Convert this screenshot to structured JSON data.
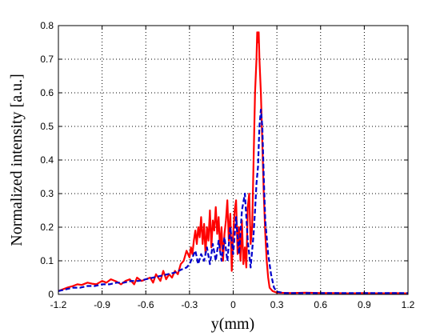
{
  "chart_data": {
    "type": "line",
    "title": "",
    "xlabel": "y(mm)",
    "ylabel": "Normalized intensity [a.u.]",
    "xlim": [
      -1.2,
      1.2
    ],
    "ylim": [
      0,
      0.8
    ],
    "xticks": [
      -1.2,
      -0.9,
      -0.6,
      -0.3,
      0,
      0.3,
      0.6,
      0.9,
      1.2
    ],
    "xtick_labels": [
      "-1.2",
      "-0.9",
      "-0.6",
      "-0.3",
      "0",
      "0.3",
      "0.6",
      "0.9",
      "1.2"
    ],
    "yticks": [
      0,
      0.1,
      0.2,
      0.3,
      0.4,
      0.5,
      0.6,
      0.7,
      0.8
    ],
    "ytick_labels": [
      "0",
      "0.1",
      "0.2",
      "0.3",
      "0.4",
      "0.5",
      "0.6",
      "0.7",
      "0.8"
    ],
    "grid": true,
    "legend": "none",
    "series": [
      {
        "color": "#ff0000",
        "style": "solid",
        "points": [
          [
            -1.2,
            0.01
          ],
          [
            -1.17,
            0.015
          ],
          [
            -1.14,
            0.02
          ],
          [
            -1.1,
            0.025
          ],
          [
            -1.07,
            0.03
          ],
          [
            -1.04,
            0.028
          ],
          [
            -1.0,
            0.035
          ],
          [
            -0.97,
            0.032
          ],
          [
            -0.94,
            0.03
          ],
          [
            -0.9,
            0.04
          ],
          [
            -0.87,
            0.035
          ],
          [
            -0.84,
            0.045
          ],
          [
            -0.8,
            0.038
          ],
          [
            -0.77,
            0.03
          ],
          [
            -0.74,
            0.04
          ],
          [
            -0.71,
            0.045
          ],
          [
            -0.68,
            0.03
          ],
          [
            -0.66,
            0.05
          ],
          [
            -0.63,
            0.04
          ],
          [
            -0.6,
            0.045
          ],
          [
            -0.57,
            0.05
          ],
          [
            -0.55,
            0.035
          ],
          [
            -0.53,
            0.06
          ],
          [
            -0.5,
            0.04
          ],
          [
            -0.48,
            0.07
          ],
          [
            -0.46,
            0.045
          ],
          [
            -0.44,
            0.06
          ],
          [
            -0.42,
            0.05
          ],
          [
            -0.4,
            0.07
          ],
          [
            -0.38,
            0.06
          ],
          [
            -0.36,
            0.09
          ],
          [
            -0.34,
            0.1
          ],
          [
            -0.32,
            0.13
          ],
          [
            -0.3,
            0.11
          ],
          [
            -0.29,
            0.14
          ],
          [
            -0.28,
            0.12
          ],
          [
            -0.27,
            0.16
          ],
          [
            -0.26,
            0.19
          ],
          [
            -0.25,
            0.15
          ],
          [
            -0.24,
            0.2
          ],
          [
            -0.23,
            0.17
          ],
          [
            -0.22,
            0.23
          ],
          [
            -0.21,
            0.15
          ],
          [
            -0.2,
            0.21
          ],
          [
            -0.19,
            0.12
          ],
          [
            -0.18,
            0.2
          ],
          [
            -0.17,
            0.16
          ],
          [
            -0.16,
            0.25
          ],
          [
            -0.15,
            0.14
          ],
          [
            -0.14,
            0.22
          ],
          [
            -0.13,
            0.19
          ],
          [
            -0.12,
            0.26
          ],
          [
            -0.11,
            0.18
          ],
          [
            -0.1,
            0.23
          ],
          [
            -0.09,
            0.13
          ],
          [
            -0.08,
            0.2
          ],
          [
            -0.07,
            0.1
          ],
          [
            -0.06,
            0.18
          ],
          [
            -0.05,
            0.22
          ],
          [
            -0.04,
            0.28
          ],
          [
            -0.03,
            0.16
          ],
          [
            -0.02,
            0.24
          ],
          [
            -0.01,
            0.07
          ],
          [
            0.0,
            0.18
          ],
          [
            0.01,
            0.25
          ],
          [
            0.02,
            0.28
          ],
          [
            0.03,
            0.12
          ],
          [
            0.04,
            0.2
          ],
          [
            0.05,
            0.1
          ],
          [
            0.06,
            0.22
          ],
          [
            0.07,
            0.09
          ],
          [
            0.08,
            0.14
          ],
          [
            0.09,
            0.08
          ],
          [
            0.1,
            0.26
          ],
          [
            0.11,
            0.3
          ],
          [
            0.12,
            0.15
          ],
          [
            0.13,
            0.2
          ],
          [
            0.14,
            0.4
          ],
          [
            0.15,
            0.6
          ],
          [
            0.16,
            0.7
          ],
          [
            0.165,
            0.78
          ],
          [
            0.17,
            0.75
          ],
          [
            0.175,
            0.78
          ],
          [
            0.18,
            0.7
          ],
          [
            0.19,
            0.6
          ],
          [
            0.2,
            0.45
          ],
          [
            0.21,
            0.3
          ],
          [
            0.22,
            0.18
          ],
          [
            0.23,
            0.1
          ],
          [
            0.24,
            0.05
          ],
          [
            0.25,
            0.02
          ],
          [
            0.27,
            0.01
          ],
          [
            0.3,
            0.005
          ],
          [
            0.4,
            0.004
          ],
          [
            0.5,
            0.005
          ],
          [
            0.6,
            0.004
          ],
          [
            0.7,
            0.004
          ],
          [
            0.8,
            0.003
          ],
          [
            0.9,
            0.004
          ],
          [
            1.0,
            0.003
          ],
          [
            1.1,
            0.004
          ],
          [
            1.2,
            0.003
          ]
        ]
      },
      {
        "color": "#0000cc",
        "style": "dashed",
        "points": [
          [
            -1.2,
            0.01
          ],
          [
            -1.15,
            0.015
          ],
          [
            -1.1,
            0.02
          ],
          [
            -1.05,
            0.02
          ],
          [
            -1.0,
            0.025
          ],
          [
            -0.95,
            0.025
          ],
          [
            -0.9,
            0.03
          ],
          [
            -0.85,
            0.03
          ],
          [
            -0.8,
            0.035
          ],
          [
            -0.75,
            0.035
          ],
          [
            -0.7,
            0.04
          ],
          [
            -0.65,
            0.04
          ],
          [
            -0.6,
            0.045
          ],
          [
            -0.55,
            0.05
          ],
          [
            -0.5,
            0.055
          ],
          [
            -0.45,
            0.06
          ],
          [
            -0.4,
            0.065
          ],
          [
            -0.35,
            0.075
          ],
          [
            -0.32,
            0.08
          ],
          [
            -0.3,
            0.09
          ],
          [
            -0.28,
            0.11
          ],
          [
            -0.26,
            0.13
          ],
          [
            -0.24,
            0.09
          ],
          [
            -0.22,
            0.12
          ],
          [
            -0.2,
            0.1
          ],
          [
            -0.18,
            0.14
          ],
          [
            -0.16,
            0.09
          ],
          [
            -0.14,
            0.15
          ],
          [
            -0.12,
            0.1
          ],
          [
            -0.1,
            0.16
          ],
          [
            -0.08,
            0.1
          ],
          [
            -0.06,
            0.17
          ],
          [
            -0.04,
            0.1
          ],
          [
            -0.02,
            0.2
          ],
          [
            0.0,
            0.12
          ],
          [
            0.02,
            0.23
          ],
          [
            0.04,
            0.12
          ],
          [
            0.06,
            0.25
          ],
          [
            0.08,
            0.3
          ],
          [
            0.1,
            0.16
          ],
          [
            0.12,
            0.08
          ],
          [
            0.14,
            0.18
          ],
          [
            0.15,
            0.25
          ],
          [
            0.16,
            0.33
          ],
          [
            0.17,
            0.38
          ],
          [
            0.18,
            0.5
          ],
          [
            0.19,
            0.55
          ],
          [
            0.2,
            0.5
          ],
          [
            0.21,
            0.35
          ],
          [
            0.22,
            0.22
          ],
          [
            0.24,
            0.12
          ],
          [
            0.26,
            0.06
          ],
          [
            0.28,
            0.02
          ],
          [
            0.3,
            0.008
          ],
          [
            0.35,
            0.004
          ],
          [
            0.5,
            0.004
          ],
          [
            0.7,
            0.004
          ],
          [
            0.9,
            0.004
          ],
          [
            1.1,
            0.004
          ],
          [
            1.2,
            0.004
          ]
        ]
      }
    ]
  }
}
